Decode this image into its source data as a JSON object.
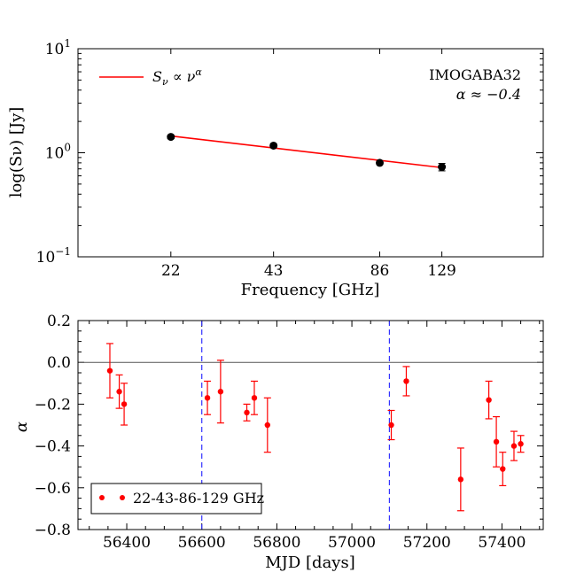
{
  "chart_data": [
    {
      "type": "scatter",
      "title": "",
      "xlabel": "Frequency [GHz]",
      "ylabel": "log(Sν) [Jy]",
      "xscale": "log",
      "yscale": "log",
      "xlim": [
        12,
        250
      ],
      "ylim": [
        0.1,
        10
      ],
      "xticks": [
        22,
        43,
        86,
        129
      ],
      "xtick_labels": [
        "22",
        "43",
        "86",
        "129"
      ],
      "yticks": [
        0.1,
        1,
        10
      ],
      "ytick_labels": [
        {
          "base": "10",
          "exp": "−1"
        },
        {
          "base": "10",
          "exp": "0"
        },
        {
          "base": "10",
          "exp": "1"
        }
      ],
      "points": [
        {
          "x": 22,
          "y": 1.42,
          "err": 0.05
        },
        {
          "x": 43,
          "y": 1.17,
          "err": 0.04
        },
        {
          "x": 86,
          "y": 0.8,
          "err": 0.03
        },
        {
          "x": 129,
          "y": 0.73,
          "err": 0.06
        }
      ],
      "fit": {
        "x": [
          22,
          129
        ],
        "y": [
          1.45,
          0.72
        ],
        "color": "#ff0000"
      },
      "legend": {
        "label_main": "S",
        "label_sub": "ν",
        "label_rest": " ∝ ν",
        "label_sup": "α",
        "location": "top-left"
      },
      "annotation": {
        "source": "IMOGABA32",
        "alpha_text": "α ≈ −0.4",
        "location": "top-right"
      }
    },
    {
      "type": "scatter",
      "title": "",
      "xlabel": "MJD [days]",
      "ylabel": "α",
      "xlim": [
        56270,
        57510
      ],
      "ylim": [
        -0.8,
        0.2
      ],
      "xticks": [
        56400,
        56600,
        56800,
        57000,
        57200,
        57400
      ],
      "xtick_labels": [
        "56400",
        "56600",
        "56800",
        "57000",
        "57200",
        "57400"
      ],
      "yticks": [
        -0.8,
        -0.6,
        -0.4,
        -0.2,
        0.0,
        0.2
      ],
      "ytick_labels": [
        "−0.8",
        "−0.6",
        "−0.4",
        "−0.2",
        "0.0",
        "0.2"
      ],
      "reference_line_y": 0.0,
      "vertical_lines_x": [
        56600,
        57100
      ],
      "series": [
        {
          "name": "22-43-86-129 GHz",
          "color": "#ff0000",
          "points": [
            {
              "x": 56355,
              "y": -0.04,
              "err": 0.13
            },
            {
              "x": 56380,
              "y": -0.14,
              "err": 0.08
            },
            {
              "x": 56393,
              "y": -0.2,
              "err": 0.1
            },
            {
              "x": 56615,
              "y": -0.17,
              "err": 0.08
            },
            {
              "x": 56650,
              "y": -0.14,
              "err": 0.15
            },
            {
              "x": 56720,
              "y": -0.24,
              "err": 0.04
            },
            {
              "x": 56740,
              "y": -0.17,
              "err": 0.08
            },
            {
              "x": 56775,
              "y": -0.3,
              "err": 0.13
            },
            {
              "x": 57105,
              "y": -0.3,
              "err": 0.07
            },
            {
              "x": 57145,
              "y": -0.09,
              "err": 0.07
            },
            {
              "x": 57290,
              "y": -0.56,
              "err": 0.15
            },
            {
              "x": 57365,
              "y": -0.18,
              "err": 0.09
            },
            {
              "x": 57385,
              "y": -0.38,
              "err": 0.12
            },
            {
              "x": 57402,
              "y": -0.51,
              "err": 0.08
            },
            {
              "x": 57432,
              "y": -0.4,
              "err": 0.07
            },
            {
              "x": 57450,
              "y": -0.39,
              "err": 0.04
            }
          ]
        }
      ],
      "legend": {
        "location": "bottom-left"
      }
    }
  ]
}
